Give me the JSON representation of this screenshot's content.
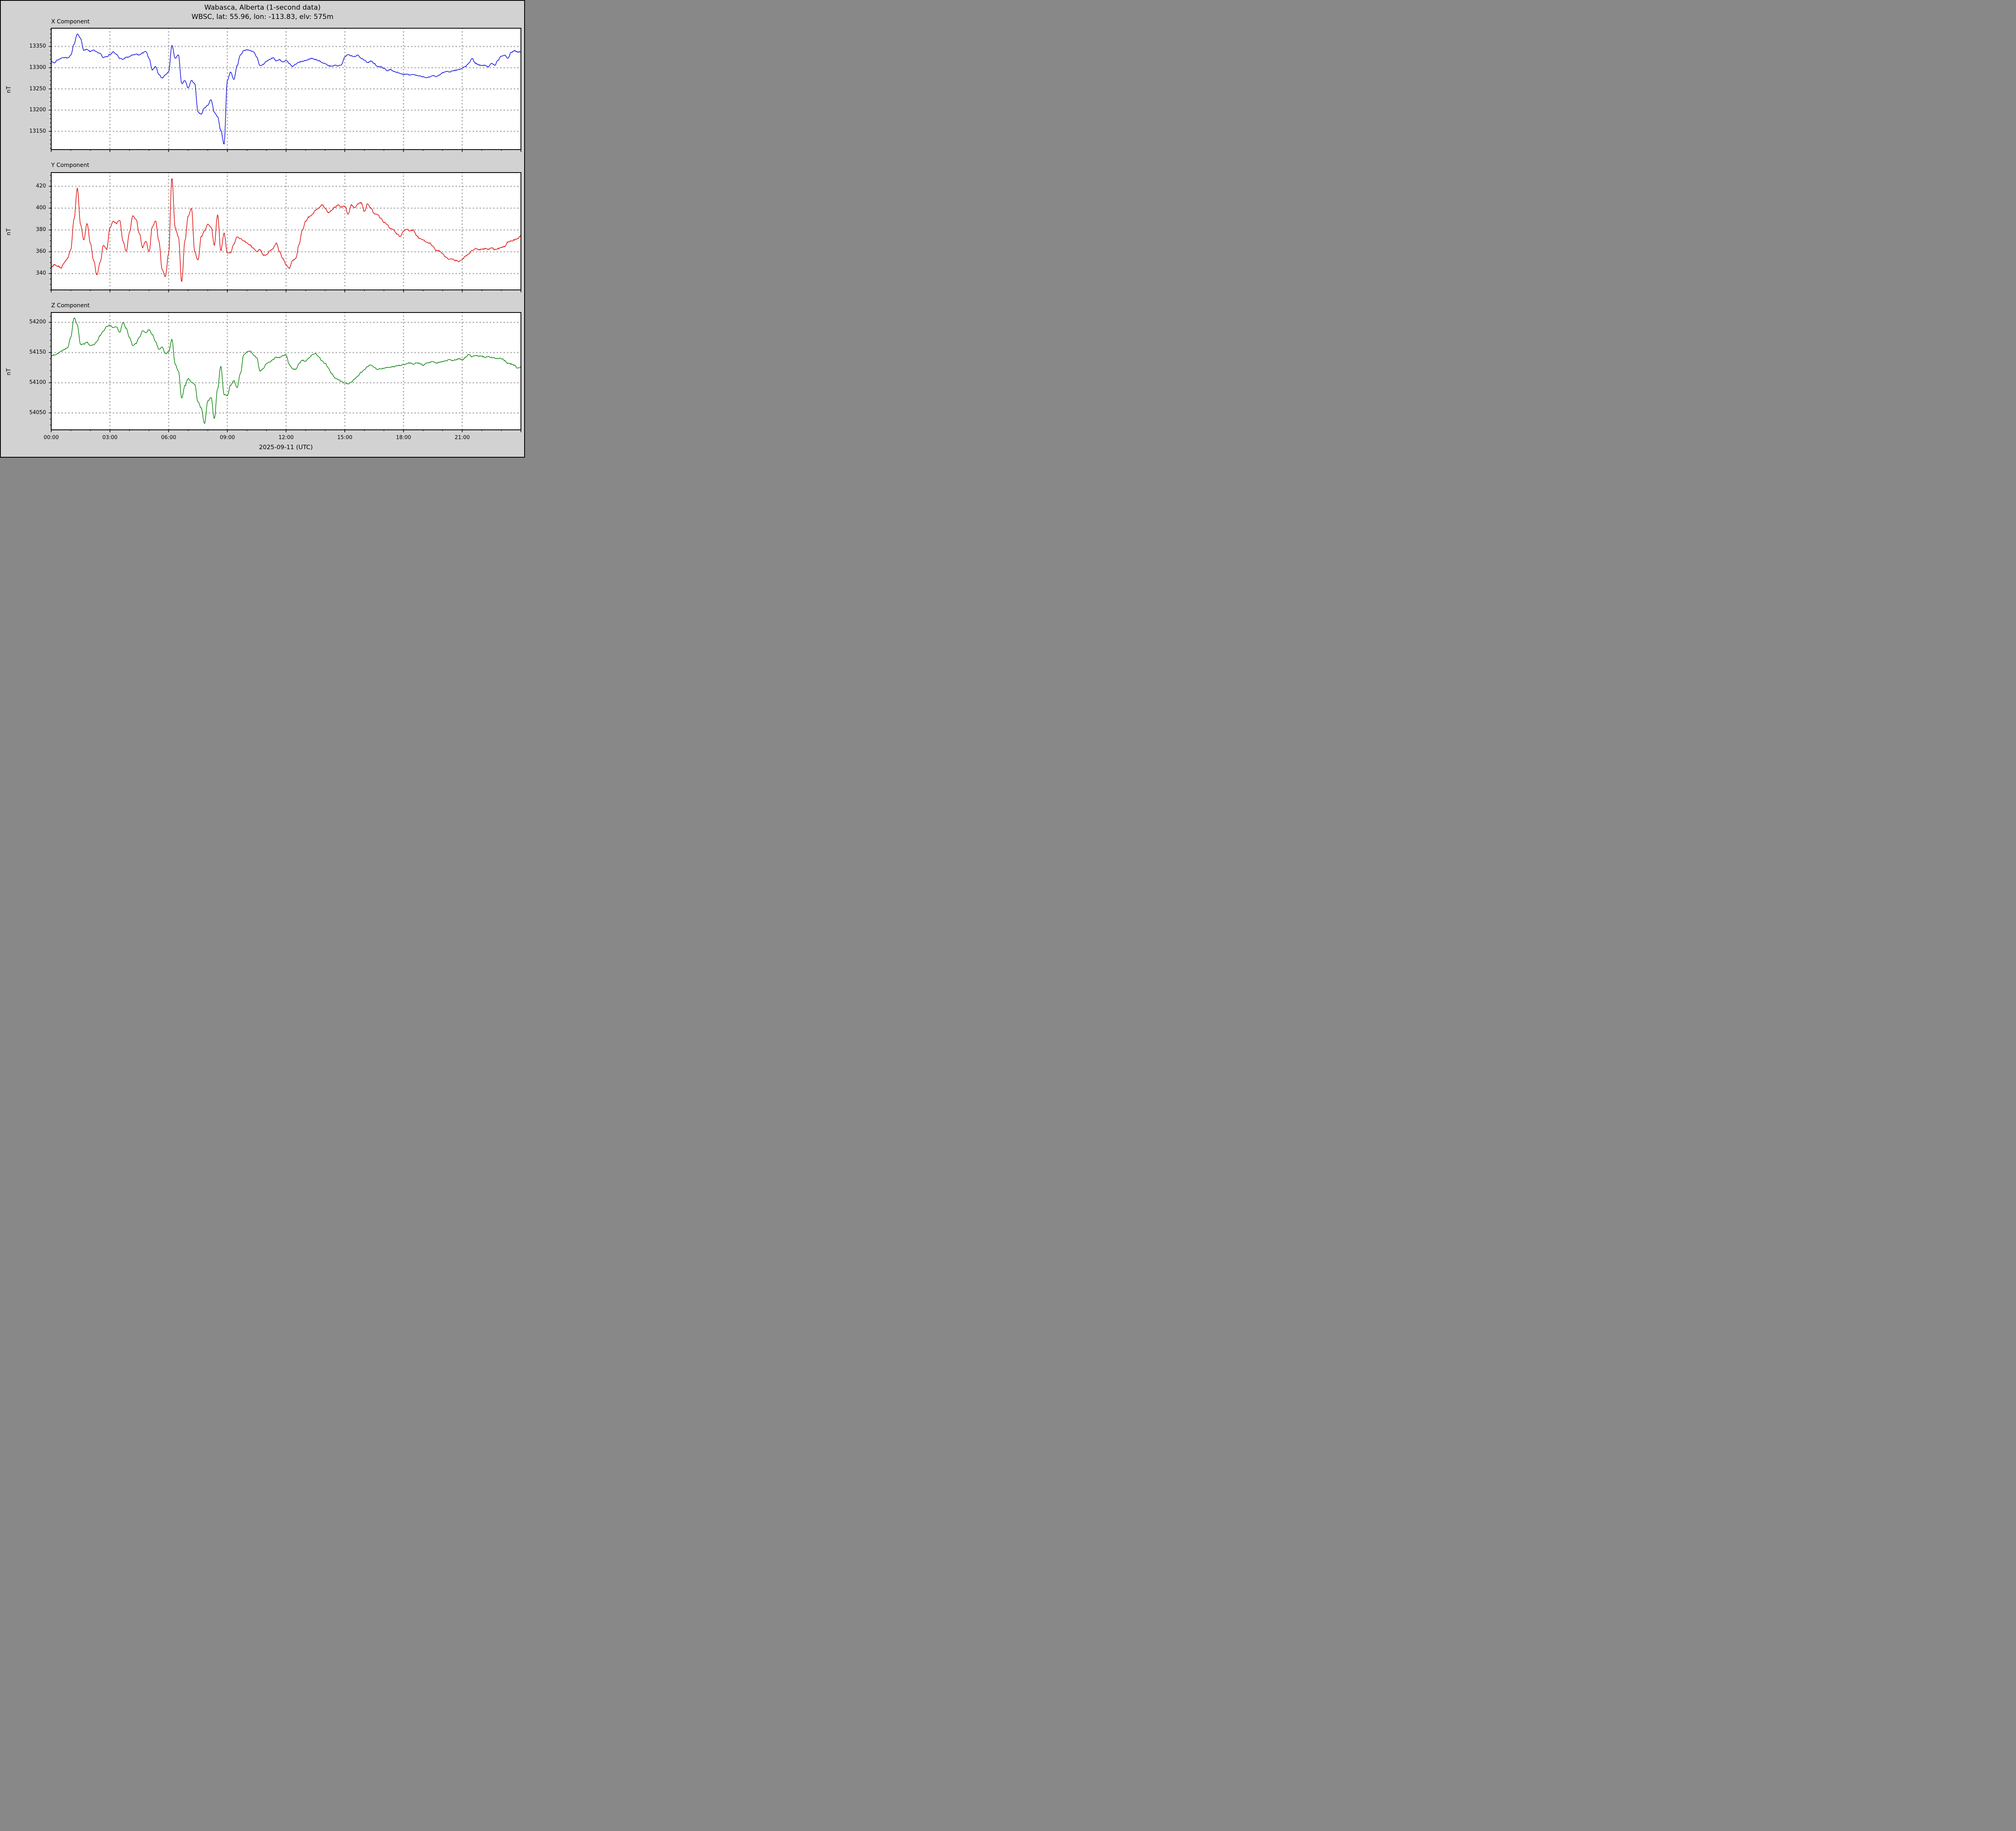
{
  "title": {
    "line1": "Wabasca, Alberta (1-second data)",
    "line2": "WBSC, lat: 55.96, lon: -113.83, elv: 575m"
  },
  "station": {
    "name": "Wabasca, Alberta",
    "code": "WBSC",
    "lat": "55.96",
    "lon": "-113.83",
    "elevation": "575m",
    "cadence": "1-second data"
  },
  "colors": {
    "background": "#d2d2d2",
    "plot_background": "#ffffff",
    "grid": "#a8a8a8",
    "axis": "#000000",
    "x_trace": "#0000dd",
    "y_trace": "#dd0000",
    "z_trace": "#008000"
  },
  "x_axis": {
    "label": "2025-09-11 (UTC)",
    "range_hours": [
      0,
      24
    ],
    "major_tick_hours": [
      0,
      3,
      6,
      9,
      12,
      15,
      18,
      21
    ],
    "tick_labels": [
      "00:00",
      "03:00",
      "06:00",
      "09:00",
      "12:00",
      "15:00",
      "18:00",
      "21:00"
    ],
    "minor_tick_every_hours": 1,
    "grid": "dotted vertical at 3-hour marks"
  },
  "chart_data": [
    {
      "type": "line",
      "title": "X Component",
      "ylabel": "nT",
      "color": "#0000dd",
      "ylim": [
        13107,
        13394
      ],
      "yticks": [
        13150,
        13200,
        13250,
        13300,
        13350
      ],
      "minor_ytick_step": 10,
      "legend": "none",
      "grid": "dotted",
      "x_start_hour": 0,
      "x_step_minutes": 10,
      "values": [
        13315,
        13312,
        13318,
        13322,
        13324,
        13323,
        13329,
        13355,
        13380,
        13369,
        13341,
        13343,
        13338,
        13342,
        13337,
        13333,
        13324,
        13326,
        13331,
        13337,
        13332,
        13322,
        13320,
        13324,
        13326,
        13330,
        13332,
        13330,
        13335,
        13338,
        13322,
        13295,
        13303,
        13285,
        13275,
        13283,
        13290,
        13353,
        13322,
        13330,
        13262,
        13270,
        13252,
        13270,
        13262,
        13195,
        13190,
        13205,
        13212,
        13225,
        13195,
        13185,
        13152,
        13120,
        13270,
        13290,
        13272,
        13305,
        13330,
        13340,
        13342,
        13340,
        13338,
        13325,
        13305,
        13308,
        13315,
        13320,
        13323,
        13316,
        13319,
        13313,
        13317,
        13310,
        13303,
        13309,
        13313,
        13315,
        13317,
        13320,
        13322,
        13319,
        13317,
        13312,
        13310,
        13305,
        13303,
        13306,
        13304,
        13307,
        13325,
        13331,
        13328,
        13326,
        13330,
        13322,
        13318,
        13312,
        13316,
        13310,
        13303,
        13302,
        13298,
        13293,
        13296,
        13291,
        13289,
        13286,
        13284,
        13285,
        13283,
        13284,
        13282,
        13280,
        13279,
        13277,
        13278,
        13281,
        13279,
        13283,
        13288,
        13291,
        13290,
        13292,
        13294,
        13296,
        13299,
        13303,
        13310,
        13322,
        13311,
        13307,
        13305,
        13306,
        13302,
        13310,
        13306,
        13318,
        13327,
        13330,
        13322,
        13336,
        13340,
        13337,
        13338
      ]
    },
    {
      "type": "line",
      "title": "Y Component",
      "ylabel": "nT",
      "color": "#dd0000",
      "ylim": [
        325,
        433
      ],
      "yticks": [
        340,
        360,
        380,
        400,
        420
      ],
      "minor_ytick_step": 5,
      "legend": "none",
      "grid": "dotted",
      "x_start_hour": 0,
      "x_step_minutes": 10,
      "values": [
        346,
        348,
        347,
        345,
        350,
        354,
        362,
        390,
        418,
        385,
        371,
        386,
        368,
        352,
        339,
        350,
        366,
        362,
        382,
        388,
        386,
        389,
        370,
        360,
        378,
        393,
        390,
        377,
        364,
        370,
        360,
        383,
        388,
        370,
        344,
        337,
        358,
        428,
        382,
        374,
        332,
        370,
        393,
        400,
        360,
        352,
        374,
        379,
        385,
        383,
        366,
        394,
        361,
        377,
        359,
        359,
        367,
        374,
        372,
        370,
        368,
        366,
        363,
        360,
        362,
        357,
        357,
        361,
        363,
        368,
        360,
        354,
        348,
        345,
        352,
        354,
        367,
        380,
        388,
        392,
        394,
        398,
        400,
        403,
        400,
        396,
        398,
        401,
        403,
        401,
        402,
        394,
        403,
        400,
        404,
        405,
        397,
        404,
        400,
        395,
        394,
        391,
        387,
        385,
        381,
        380,
        376,
        374,
        379,
        381,
        379,
        380,
        375,
        372,
        371,
        369,
        368,
        365,
        361,
        361,
        358,
        355,
        353,
        353,
        352,
        351,
        353,
        356,
        358,
        361,
        363,
        362,
        362,
        363,
        362,
        364,
        362,
        363,
        364,
        365,
        369,
        370,
        371,
        372,
        375
      ]
    },
    {
      "type": "line",
      "title": "Z Component",
      "ylabel": "nT",
      "color": "#008000",
      "ylim": [
        54022,
        54217
      ],
      "yticks": [
        54050,
        54100,
        54150,
        54200
      ],
      "minor_ytick_step": 10,
      "legend": "none",
      "grid": "dotted",
      "x_start_hour": 0,
      "x_step_minutes": 10,
      "values": [
        54145,
        54146,
        54148,
        54152,
        54155,
        54158,
        54175,
        54208,
        54196,
        54163,
        54164,
        54167,
        54161,
        54163,
        54168,
        54178,
        54186,
        54193,
        54195,
        54191,
        54193,
        54183,
        54200,
        54190,
        54175,
        54162,
        54165,
        54175,
        54186,
        54183,
        54188,
        54180,
        54168,
        54155,
        54159,
        54148,
        54151,
        54172,
        54131,
        54120,
        54075,
        54095,
        54107,
        54101,
        54097,
        54068,
        54058,
        54032,
        54070,
        54076,
        54040,
        54090,
        54127,
        54080,
        54079,
        54096,
        54103,
        54092,
        54115,
        54146,
        54151,
        54153,
        54146,
        54142,
        54119,
        54123,
        54132,
        54134,
        54139,
        54142,
        54142,
        54145,
        54146,
        54130,
        54123,
        54122,
        54132,
        54137,
        54136,
        54141,
        54146,
        54148,
        54143,
        54136,
        54132,
        54124,
        54115,
        54108,
        54105,
        54102,
        54099,
        54098,
        54101,
        54106,
        54111,
        54117,
        54122,
        54127,
        54130,
        54125,
        54122,
        54123,
        54124,
        54125,
        54126,
        54127,
        54128,
        54129,
        54130,
        54132,
        54133,
        54131,
        54133,
        54132,
        54129,
        54132,
        54134,
        54135,
        54132,
        54134,
        54135,
        54136,
        54138,
        54137,
        54138,
        54140,
        54138,
        54142,
        54147,
        54143,
        54145,
        54144,
        54144,
        54142,
        54143,
        54142,
        54141,
        54140,
        54140,
        54137,
        54132,
        54131,
        54129,
        54124,
        54126
      ]
    }
  ]
}
